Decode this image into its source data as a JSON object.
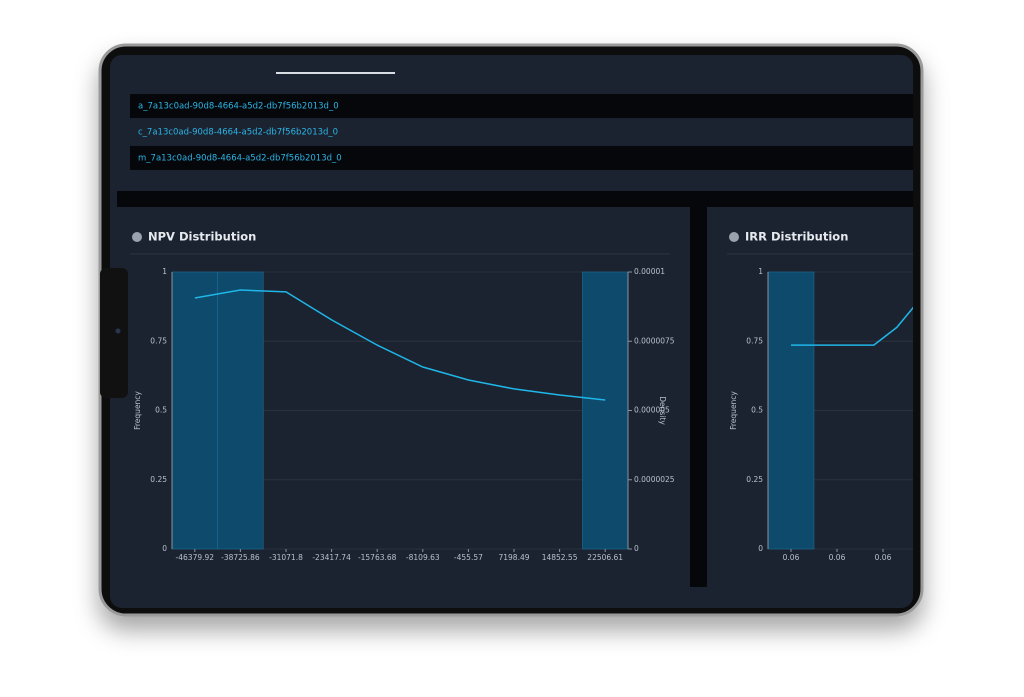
{
  "list_items": [
    "a_7a13c0ad-90d8-4664-a5d2-db7f56b2013d_0",
    "c_7a13c0ad-90d8-4664-a5d2-db7f56b2013d_0",
    "m_7a13c0ad-90d8-4664-a5d2-db7f56b2013d_0"
  ],
  "chart_data": [
    {
      "type": "histogram",
      "title": "NPV Distribution",
      "color": "#0e4a6b",
      "bins": [
        -50206.95,
        -42552.89,
        -34898.83,
        -27244.77,
        -19590.71,
        -11936.66,
        -4282.6,
        3371.46,
        11025.52,
        18679.58,
        26333.64
      ],
      "counts": [
        1,
        1,
        0,
        0,
        0,
        0,
        0,
        0,
        0,
        1
      ],
      "xlim": [
        -50206.95,
        26333.64
      ],
      "xticks": [
        -46379.92,
        -38725.86,
        -31071.8,
        -23417.74,
        -15763.68,
        -8109.63,
        -455.57,
        7198.49,
        14852.55,
        22506.61
      ],
      "ylim": [
        0,
        1
      ],
      "yticks": [
        0,
        0.25,
        0.5,
        0.75,
        1
      ],
      "y_label": "Frequency",
      "y2lim": [
        0,
        1e-05
      ],
      "y2ticks": [
        0,
        2.5e-06,
        5e-06,
        7.5e-06,
        1e-05
      ],
      "y2_label": "Density",
      "line": {
        "axis": "y2",
        "color": "#1fb6e8",
        "x": [
          -46379.92,
          -38725.86,
          -31071.8,
          -23417.74,
          -15763.68,
          -8109.63,
          -455.57,
          7198.49,
          14852.55,
          22506.61
        ],
        "values": [
          9.06e-06,
          9.35e-06,
          9.28e-06,
          8.27e-06,
          7.36e-06,
          6.57e-06,
          6.1e-06,
          5.78e-06,
          5.56e-06,
          5.38e-06
        ]
      }
    },
    {
      "type": "histogram",
      "title": "IRR Distribution",
      "color": "#0e4a6b",
      "bins": [
        0.0585,
        0.0595,
        0.0605,
        0.0615
      ],
      "counts": [
        1,
        0,
        0
      ],
      "xlim": [
        0.0585,
        0.0645
      ],
      "xticks": [
        {
          "value": 0.059,
          "label": "0.06"
        },
        {
          "value": 0.06,
          "label": "0.06"
        },
        {
          "value": 0.061,
          "label": "0.06"
        }
      ],
      "ylim": [
        0,
        1
      ],
      "yticks": [
        0,
        0.25,
        0.5,
        0.75,
        1
      ],
      "y_label": "Frequency",
      "line": {
        "axis": "y",
        "color": "#1fb6e8",
        "x": [
          0.059,
          0.06,
          0.0608,
          0.0613,
          0.0617
        ],
        "values": [
          0.736,
          0.736,
          0.736,
          0.8,
          0.88
        ]
      }
    }
  ]
}
